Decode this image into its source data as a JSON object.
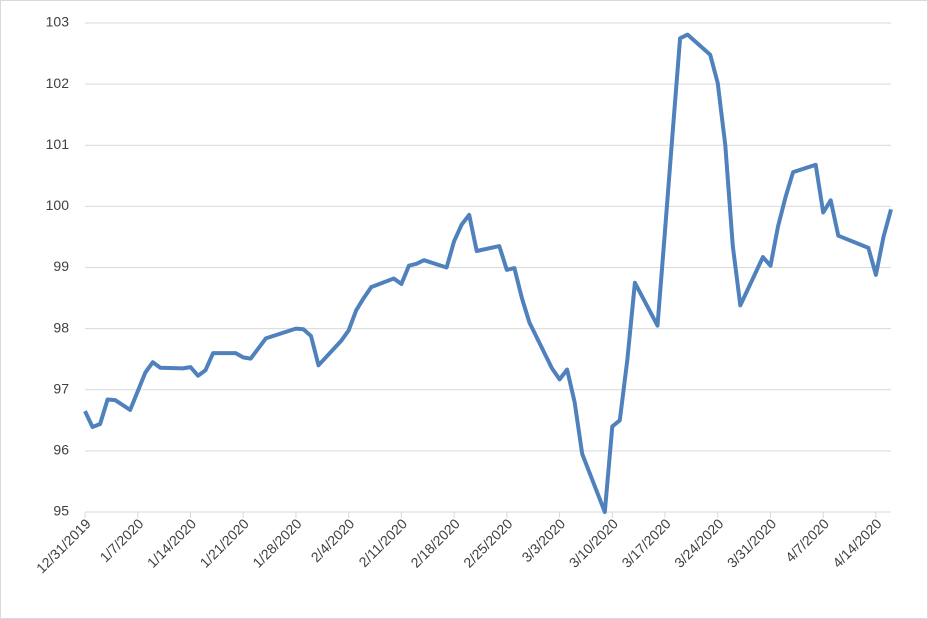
{
  "chart_data": {
    "type": "line",
    "x": [
      "12/31/2019",
      "1/1/2020",
      "1/2/2020",
      "1/3/2020",
      "1/4/2020",
      "1/6/2020",
      "1/8/2020",
      "1/9/2020",
      "1/10/2020",
      "1/13/2020",
      "1/14/2020",
      "1/15/2020",
      "1/16/2020",
      "1/17/2020",
      "1/20/2020",
      "1/21/2020",
      "1/22/2020",
      "1/24/2020",
      "1/28/2020",
      "1/29/2020",
      "1/30/2020",
      "1/31/2020",
      "2/3/2020",
      "2/4/2020",
      "2/5/2020",
      "2/6/2020",
      "2/7/2020",
      "2/10/2020",
      "2/11/2020",
      "2/12/2020",
      "2/13/2020",
      "2/14/2020",
      "2/17/2020",
      "2/18/2020",
      "2/19/2020",
      "2/20/2020",
      "2/21/2020",
      "2/24/2020",
      "2/25/2020",
      "2/26/2020",
      "2/27/2020",
      "2/28/2020",
      "3/2/2020",
      "3/3/2020",
      "3/4/2020",
      "3/5/2020",
      "3/6/2020",
      "3/9/2020",
      "3/10/2020",
      "3/11/2020",
      "3/12/2020",
      "3/13/2020",
      "3/16/2020",
      "3/17/2020",
      "3/18/2020",
      "3/19/2020",
      "3/20/2020",
      "3/23/2020",
      "3/24/2020",
      "3/25/2020",
      "3/26/2020",
      "3/27/2020",
      "3/30/2020",
      "3/31/2020",
      "4/1/2020",
      "4/2/2020",
      "4/3/2020",
      "4/6/2020",
      "4/7/2020",
      "4/8/2020",
      "4/9/2020",
      "4/13/2020",
      "4/14/2020",
      "4/15/2020",
      "4/16/2020"
    ],
    "series": [
      {
        "color": "#4f81bd",
        "values": [
          96.65,
          96.39,
          96.44,
          96.84,
          96.83,
          96.67,
          97.28,
          97.45,
          97.36,
          97.35,
          97.37,
          97.23,
          97.32,
          97.6,
          97.6,
          97.53,
          97.51,
          97.84,
          98.0,
          97.99,
          97.88,
          97.4,
          97.8,
          97.97,
          98.3,
          98.5,
          98.68,
          98.82,
          98.73,
          99.03,
          99.06,
          99.12,
          99.0,
          99.43,
          99.7,
          99.86,
          99.27,
          99.35,
          98.96,
          98.99,
          98.5,
          98.1,
          97.35,
          97.17,
          97.33,
          96.8,
          95.95,
          95.0,
          96.4,
          96.5,
          97.5,
          98.75,
          98.05,
          99.6,
          101.2,
          102.75,
          102.81,
          102.48,
          102.02,
          101.0,
          99.35,
          98.38,
          99.17,
          99.03,
          99.67,
          100.15,
          100.56,
          100.68,
          99.9,
          100.1,
          99.52,
          99.32,
          98.88,
          99.5,
          99.95
        ]
      }
    ],
    "xlim": [
      "12/31/2019",
      "4/16/2020"
    ],
    "xticks": [
      "12/31/2019",
      "1/7/2020",
      "1/14/2020",
      "1/21/2020",
      "1/28/2020",
      "2/4/2020",
      "2/11/2020",
      "2/18/2020",
      "2/25/2020",
      "3/3/2020",
      "3/10/2020",
      "3/17/2020",
      "3/24/2020",
      "3/31/2020",
      "4/7/2020",
      "4/14/2020"
    ],
    "ylim": [
      95,
      103
    ],
    "yticks": [
      95,
      96,
      97,
      98,
      99,
      100,
      101,
      102,
      103
    ],
    "grid": true
  }
}
